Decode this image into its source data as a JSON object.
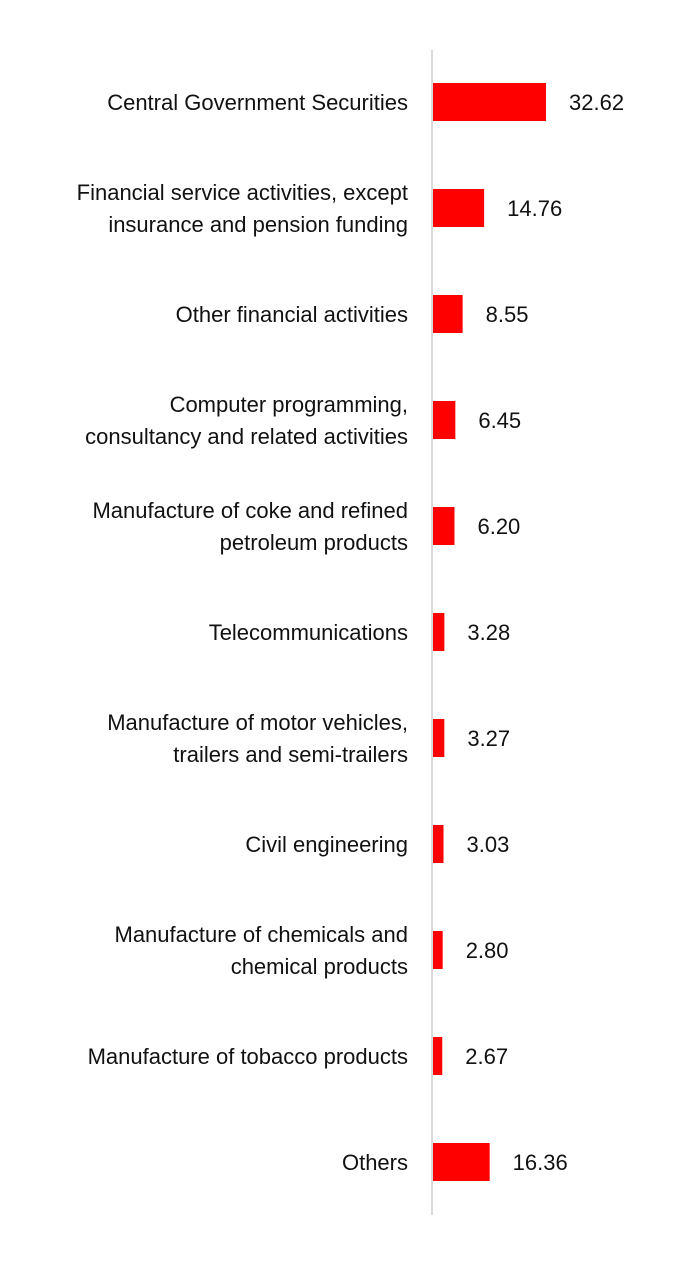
{
  "chart_data": {
    "type": "bar",
    "orientation": "horizontal",
    "categories": [
      "Central Government Securities",
      "Financial service activities, except insurance and pension funding",
      "Other financial activities",
      "Computer programming, consultancy and related activities",
      "Manufacture of coke and refined petroleum products",
      "Telecommunications",
      "Manufacture of motor vehicles, trailers and semi-trailers",
      "Civil engineering",
      "Manufacture of chemicals and chemical products",
      "Manufacture of tobacco products",
      "Others"
    ],
    "category_lines": [
      [
        "Central Government Securities"
      ],
      [
        "Financial service activities, except",
        "insurance and pension funding"
      ],
      [
        "Other financial activities"
      ],
      [
        "Computer programming,",
        "consultancy and related activities"
      ],
      [
        "Manufacture of coke and refined",
        "petroleum products"
      ],
      [
        "Telecommunications"
      ],
      [
        "Manufacture of motor vehicles,",
        "trailers and semi-trailers"
      ],
      [
        "Civil engineering"
      ],
      [
        "Manufacture of chemicals and",
        "chemical products"
      ],
      [
        "Manufacture of tobacco products"
      ],
      [
        "Others"
      ]
    ],
    "values": [
      32.62,
      14.76,
      8.55,
      6.45,
      6.2,
      3.28,
      3.27,
      3.03,
      2.8,
      2.67,
      16.36
    ],
    "value_labels": [
      "32.62",
      "14.76",
      "8.55",
      "6.45",
      "6.20",
      "3.28",
      "3.27",
      "3.03",
      "2.80",
      "2.67",
      "16.36"
    ],
    "bar_color": "#ff0000",
    "axis_color": "#d9d9d9",
    "xlim": [
      0,
      32.62
    ],
    "grid": false,
    "legend": "none"
  }
}
